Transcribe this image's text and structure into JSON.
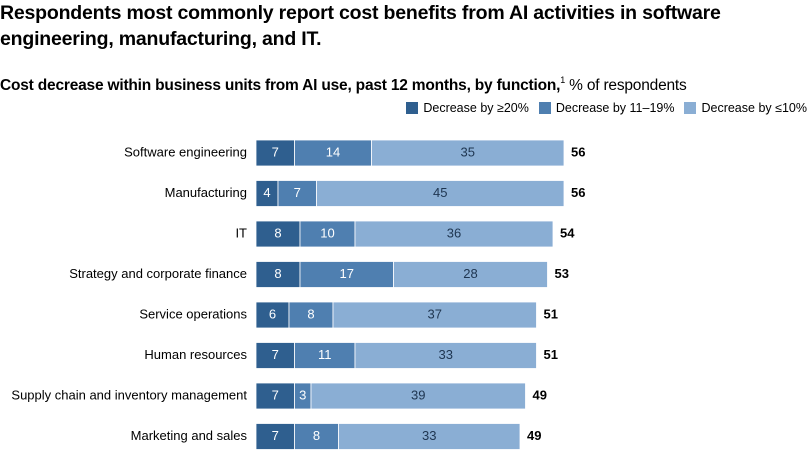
{
  "colors": {
    "c1": "#2f5f8f",
    "c2": "#4f7fb0",
    "c3": "#8aaed4",
    "text": "#000000"
  },
  "chart_data": {
    "type": "bar",
    "orientation": "horizontal",
    "stacked": true,
    "title": "Respondents most commonly report cost benefits from AI activities in software engineering, manufacturing, and IT.",
    "subtitle_bold": "Cost decrease within business units from AI use, past 12 months, by function,",
    "subtitle_footnote": "1",
    "subtitle_rest": " % of respondents",
    "categories": [
      "Software engineering",
      "Manufacturing",
      "IT",
      "Strategy and corporate finance",
      "Service operations",
      "Human resources",
      "Supply chain and inventory management",
      "Marketing and sales"
    ],
    "series": [
      {
        "name": "Decrease by ≥20%",
        "values": [
          7,
          4,
          8,
          8,
          6,
          7,
          7,
          7
        ]
      },
      {
        "name": "Decrease by 11–19%",
        "values": [
          14,
          7,
          10,
          17,
          8,
          11,
          3,
          8
        ]
      },
      {
        "name": "Decrease by ≤10%",
        "values": [
          35,
          45,
          36,
          28,
          37,
          33,
          39,
          33
        ]
      }
    ],
    "totals": [
      56,
      56,
      54,
      53,
      51,
      51,
      49,
      49
    ]
  }
}
